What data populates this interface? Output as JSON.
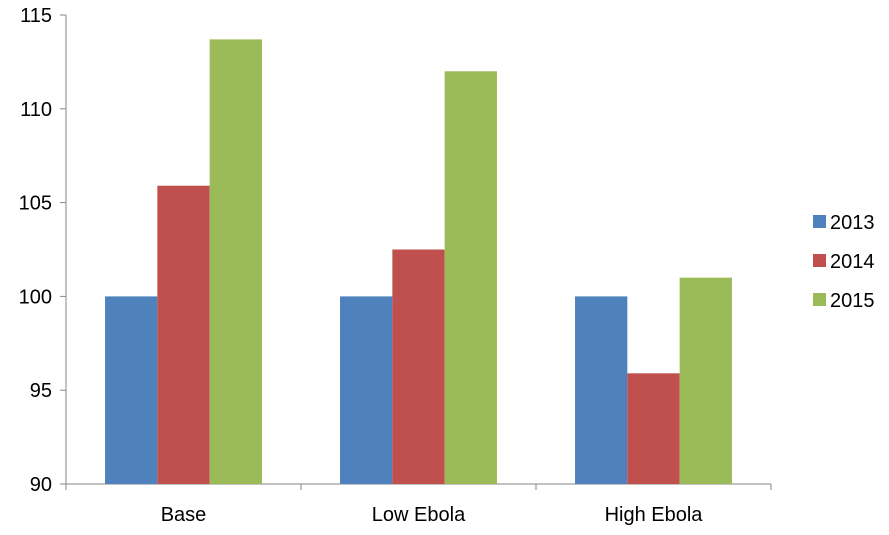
{
  "chart_data": {
    "type": "bar",
    "title": "",
    "xlabel": "",
    "ylabel": "",
    "categories": [
      "Base",
      "Low Ebola",
      "High Ebola"
    ],
    "series": [
      {
        "name": "2013",
        "color": "#4F81BD",
        "values": [
          100,
          100,
          100
        ]
      },
      {
        "name": "2014",
        "color": "#C0504D",
        "values": [
          105.9,
          102.5,
          95.9
        ]
      },
      {
        "name": "2015",
        "color": "#9BBB59",
        "values": [
          113.7,
          112.0,
          101.0
        ]
      }
    ],
    "ylim": [
      90,
      115
    ],
    "yticks": [
      "90",
      "95",
      "100",
      "105",
      "110",
      "115"
    ],
    "grid": false,
    "legend_position": "right"
  }
}
